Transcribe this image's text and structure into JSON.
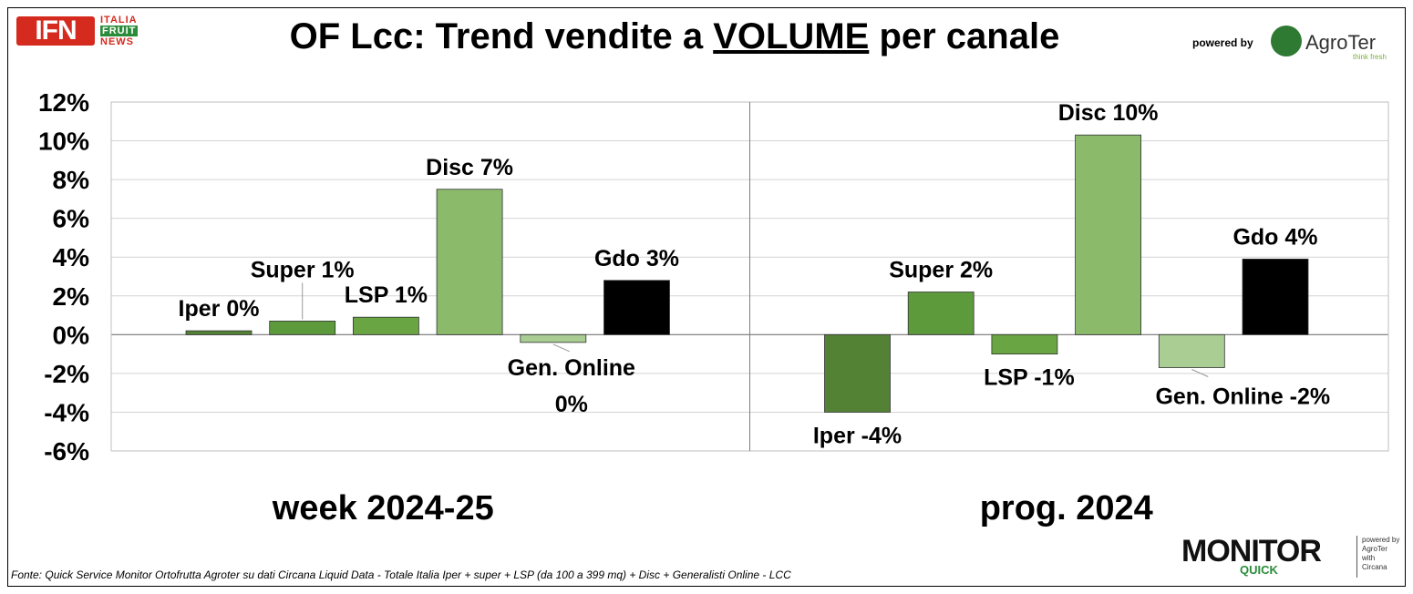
{
  "header": {
    "title_pre": "OF Lcc: Trend vendite a ",
    "title_underlined": "VOLUME",
    "title_post": " per canale",
    "powered_by": "powered by",
    "agroter_name": "AgroTer",
    "agroter_tagline": "think fresh"
  },
  "logo_ifn": {
    "main": "IFN",
    "line1": "ITALIA",
    "line2": "FRUIT",
    "line3": "NEWS"
  },
  "footer": {
    "source": "Fonte: Quick Service Monitor Ortofrutta Agroter su dati Circana Liquid Data - Totale Italia Iper + super + LSP (da 100 a 399 mq) + Disc + Generalisti Online - LCC"
  },
  "monitor_logo": {
    "word": "MONITOR",
    "sub": "QUICK",
    "powered_line": "powered by",
    "brand": "AgroTer",
    "with": "with",
    "partner": "Circana"
  },
  "chart_data": {
    "type": "bar",
    "ylim": [
      -0.06,
      0.12
    ],
    "yticks": [
      "12%",
      "10%",
      "8%",
      "6%",
      "4%",
      "2%",
      "0%",
      "-2%",
      "-4%",
      "-6%"
    ],
    "grid": true,
    "panels": [
      {
        "label": "week 2024-25",
        "bars": [
          {
            "name": "Iper",
            "value": 0.002,
            "label_lines": [
              "Iper 0%"
            ]
          },
          {
            "name": "Super",
            "value": 0.007,
            "label_lines": [
              "Super 1%"
            ]
          },
          {
            "name": "LSP",
            "value": 0.009,
            "label_lines": [
              "LSP 1%"
            ]
          },
          {
            "name": "Disc",
            "value": 0.075,
            "label_lines": [
              "Disc 7%"
            ]
          },
          {
            "name": "Gen. Online",
            "value": -0.004,
            "label_lines": [
              "Gen. Online",
              "0%"
            ]
          },
          {
            "name": "Gdo",
            "value": 0.028,
            "label_lines": [
              "Gdo 3%"
            ]
          }
        ]
      },
      {
        "label": "prog. 2024",
        "bars": [
          {
            "name": "Iper",
            "value": -0.04,
            "label_lines": [
              "Iper -4%"
            ]
          },
          {
            "name": "Super",
            "value": 0.022,
            "label_lines": [
              "Super 2%"
            ]
          },
          {
            "name": "LSP",
            "value": -0.01,
            "label_lines": [
              "LSP -1%"
            ]
          },
          {
            "name": "Disc",
            "value": 0.103,
            "label_lines": [
              "Disc 10%"
            ]
          },
          {
            "name": "Gen. Online",
            "value": -0.017,
            "label_lines": [
              "Gen. Online -2%"
            ]
          },
          {
            "name": "Gdo",
            "value": 0.039,
            "label_lines": [
              "Gdo 4%"
            ]
          }
        ]
      }
    ],
    "colors": {
      "Iper": "#548235",
      "Super": "#5d9a3c",
      "LSP": "#6aa543",
      "Disc": "#8aba6a",
      "Gen. Online": "#a9cd92",
      "Gdo": "#000000"
    }
  }
}
